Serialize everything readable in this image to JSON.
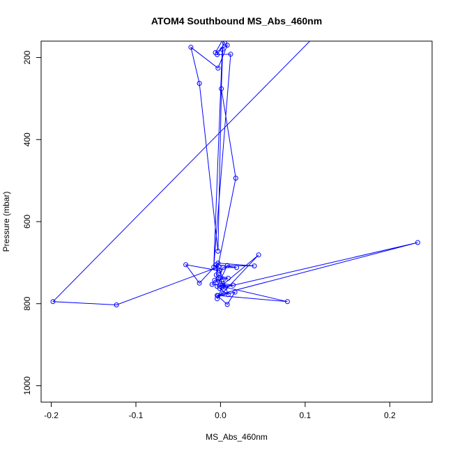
{
  "chart_data": {
    "type": "scatter",
    "title": "ATOM4 Southbound MS_Abs_460nm",
    "xlabel": "MS_Abs_460nm",
    "ylabel": "Pressure (mbar)",
    "xlim": [
      -0.212,
      0.25
    ],
    "ylim": [
      160,
      1040
    ],
    "y_reversed": true,
    "x_ticks": [
      -0.2,
      -0.1,
      0.0,
      0.1,
      0.2
    ],
    "x_tick_labels": [
      "-0.2",
      "-0.1",
      "0.0",
      "0.1",
      "0.2"
    ],
    "y_ticks": [
      200,
      400,
      600,
      800,
      1000
    ],
    "y_tick_labels": [
      "200",
      "400",
      "600",
      "800",
      "1000"
    ],
    "grid": false,
    "series_color": "#0000ff",
    "series": [
      {
        "style": "line+open-circle",
        "x": [
          0.12,
          -0.198,
          -0.123,
          -0.002,
          0.003,
          0.009,
          -0.001,
          0.233,
          0.003,
          -0.004,
          0.008,
          0.017,
          -0.003,
          0.079,
          0.006,
          -0.003,
          0.003,
          0.019,
          -0.005,
          -0.004,
          0.015,
          -0.004,
          0.008,
          0.04,
          -0.003,
          -0.025,
          -0.041,
          -0.001,
          0.002,
          -0.004,
          0.045,
          0.002,
          -0.01,
          -0.007,
          0.009,
          -0.005,
          0.018,
          0.001,
          0.003,
          -0.006,
          0.008,
          -0.003,
          -0.035,
          -0.025,
          -0.003,
          0.002,
          -0.008,
          0.012,
          -0.004,
          0.005,
          -0.002,
          0.09
        ],
        "y": [
          130,
          795,
          803,
          710,
          742,
          778,
          763,
          651,
          775,
          780,
          802,
          772,
          780,
          795,
          760,
          740,
          712,
          712,
          705,
          749,
          755,
          758,
          707,
          708,
          701,
          750,
          705,
          720,
          760,
          788,
          681,
          755,
          753,
          743,
          738,
          730,
          494,
          276,
          155,
          188,
          170,
          226,
          175,
          263,
          672,
          180,
          711,
          192,
          193,
          165,
          140,
          120
        ]
      }
    ]
  }
}
